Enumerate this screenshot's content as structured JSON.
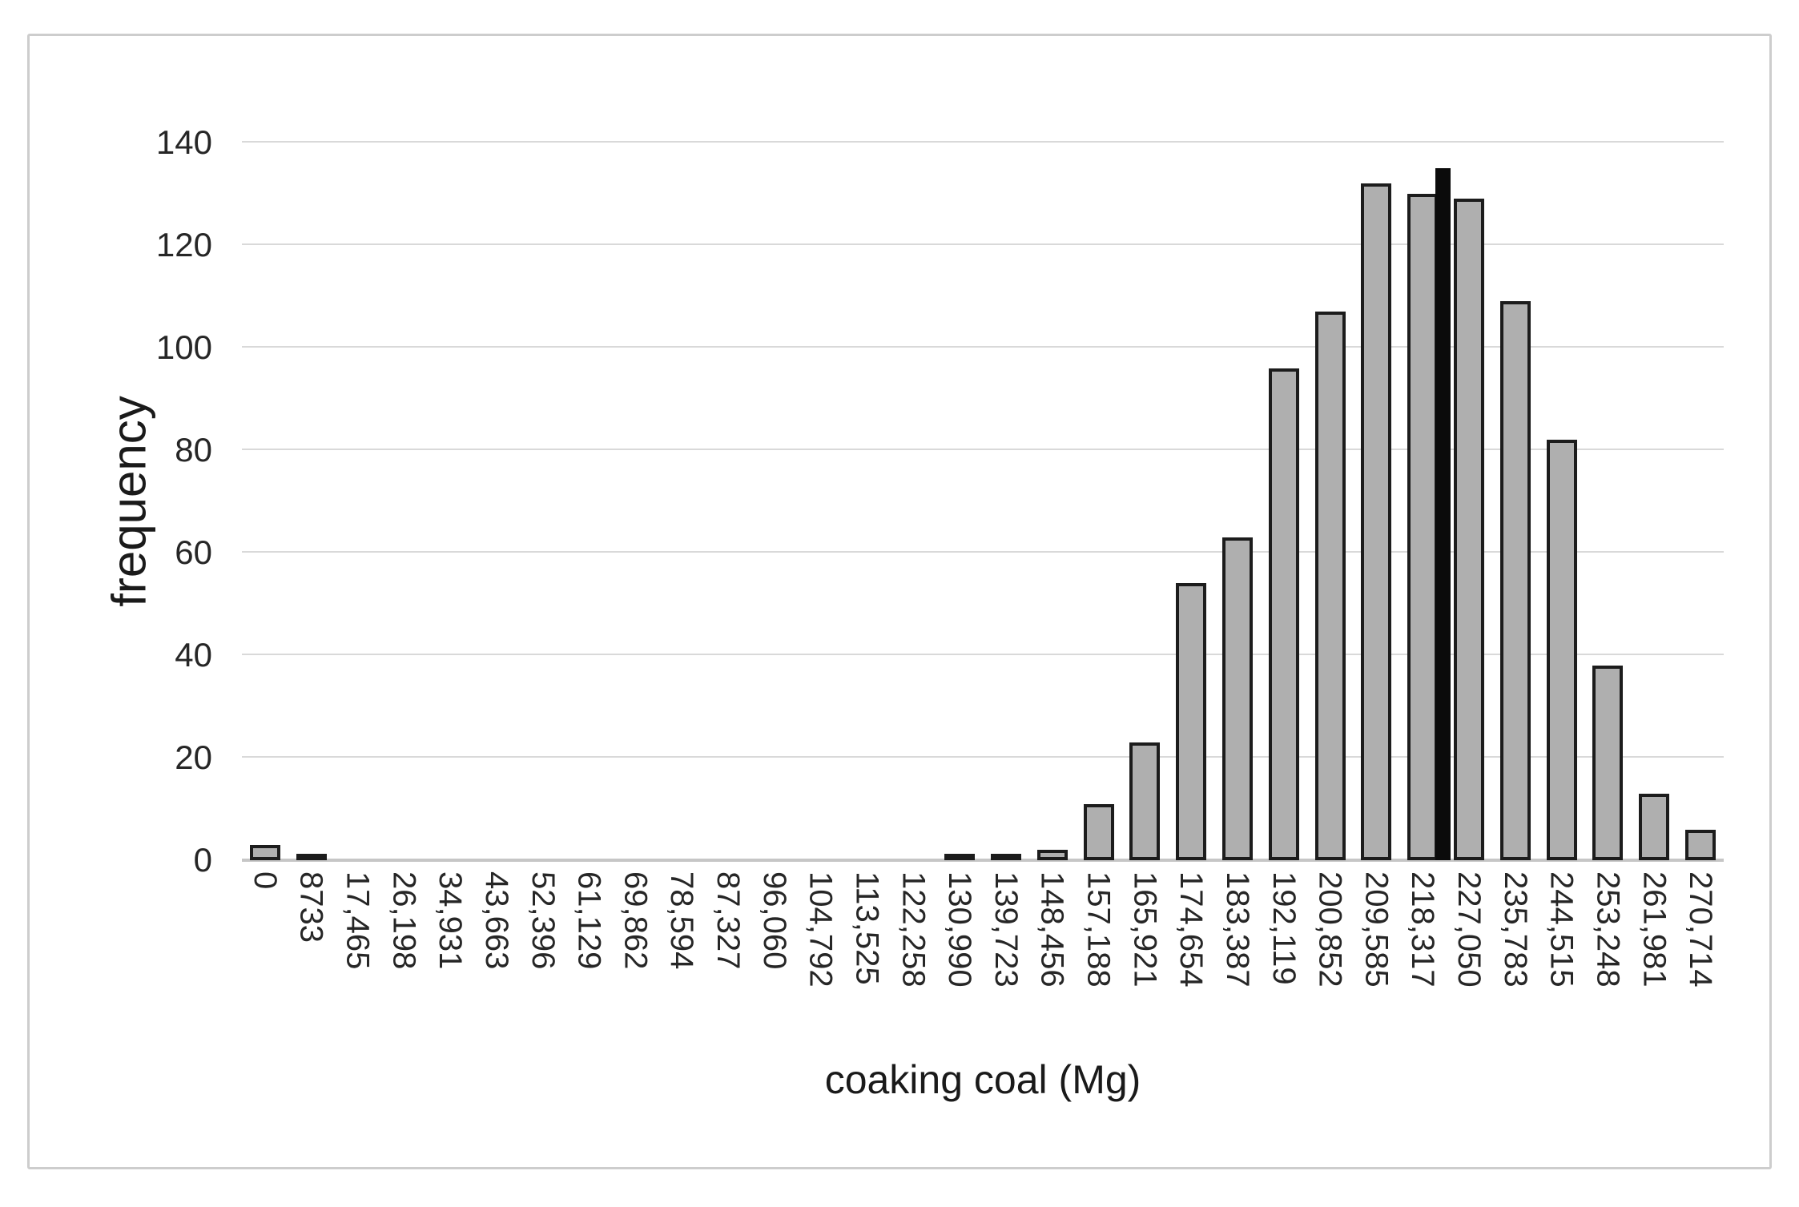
{
  "figure": {
    "background": "#ffffff",
    "border_color": "#cdcdcd"
  },
  "chart_data": {
    "type": "bar",
    "title": "",
    "xlabel": "coaking coal (Mg)",
    "ylabel": "frequency",
    "ylim": [
      0,
      140
    ],
    "yticks": [
      0,
      20,
      40,
      60,
      80,
      100,
      120,
      140
    ],
    "grid": true,
    "legend_position": "none",
    "gridline_color": "#d9d9d9",
    "bar_fill": "#afafaf",
    "bar_stroke": "#1c1c1c",
    "categories": [
      "0",
      "8733",
      "17,465",
      "26,198",
      "34,931",
      "43,663",
      "52,396",
      "61,129",
      "69,862",
      "78,594",
      "87,327",
      "96,060",
      "104,792",
      "113,525",
      "122,258",
      "130,990",
      "139,723",
      "148,456",
      "157,188",
      "165,921",
      "174,654",
      "183,387",
      "192,119",
      "200,852",
      "209,585",
      "218,317",
      "227,050",
      "235,783",
      "244,515",
      "253,248",
      "261,981",
      "270,714"
    ],
    "values": [
      3,
      1,
      0,
      0,
      0,
      0,
      0,
      0,
      0,
      0,
      0,
      0,
      0,
      0,
      0,
      1,
      1,
      2,
      11,
      23,
      54,
      63,
      96,
      107,
      132,
      130,
      129,
      109,
      82,
      38,
      13,
      6
    ],
    "marker": {
      "description": "thin solid black highlight bar",
      "value": 135,
      "between_categories": [
        "218,317",
        "227,050"
      ],
      "position_fraction": 0.81,
      "color": "#0b0b0b"
    }
  }
}
